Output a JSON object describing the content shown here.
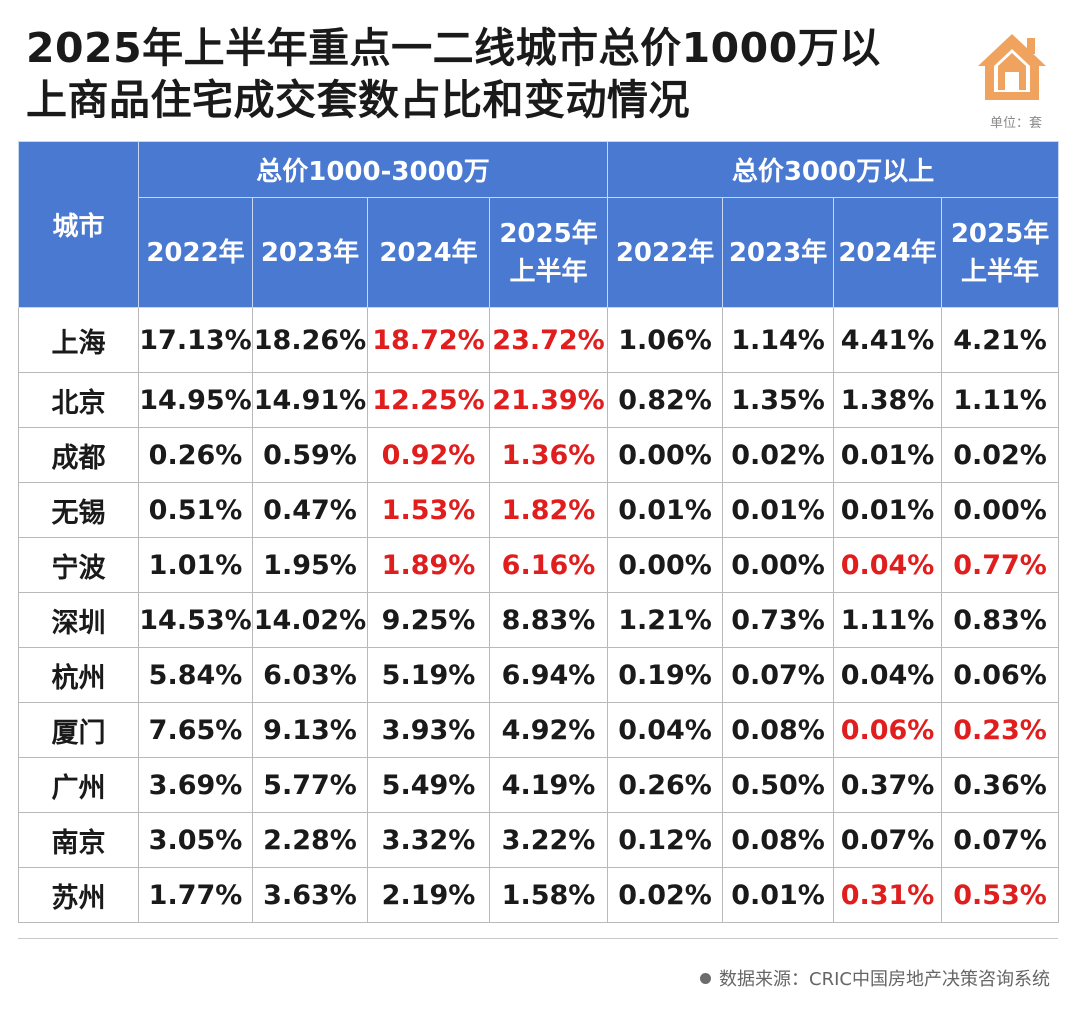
{
  "title": {
    "line1": "2025年上半年重点一二线城市总价1000万以",
    "line2": "上商品住宅成交套数占比和变动情况"
  },
  "unit_label": "单位：套",
  "logo_icon": "house-icon",
  "colors": {
    "header_bg": "#4a79d1",
    "highlight": "#e01e1e",
    "logo": "#f0a35e"
  },
  "table": {
    "city_header": "城市",
    "groups": [
      "总价1000-3000万",
      "总价3000万以上"
    ],
    "years": [
      {
        "line1": "2022年",
        "line2": ""
      },
      {
        "line1": "2023年",
        "line2": ""
      },
      {
        "line1": "2024年",
        "line2": ""
      },
      {
        "line1": "2025年",
        "line2": "上半年"
      },
      {
        "line1": "2022年",
        "line2": ""
      },
      {
        "line1": "2023年",
        "line2": ""
      },
      {
        "line1": "2024年",
        "line2": ""
      },
      {
        "line1": "2025年",
        "line2": "上半年"
      }
    ],
    "rows": [
      {
        "city": "上海",
        "values": [
          "17.13%",
          "18.26%",
          "18.72%",
          "23.72%",
          "1.06%",
          "1.14%",
          "4.41%",
          "4.21%"
        ],
        "highlight": [
          2,
          3
        ]
      },
      {
        "city": "北京",
        "values": [
          "14.95%",
          "14.91%",
          "12.25%",
          "21.39%",
          "0.82%",
          "1.35%",
          "1.38%",
          "1.11%"
        ],
        "highlight": [
          2,
          3
        ]
      },
      {
        "city": "成都",
        "values": [
          "0.26%",
          "0.59%",
          "0.92%",
          "1.36%",
          "0.00%",
          "0.02%",
          "0.01%",
          "0.02%"
        ],
        "highlight": [
          2,
          3
        ]
      },
      {
        "city": "无锡",
        "values": [
          "0.51%",
          "0.47%",
          "1.53%",
          "1.82%",
          "0.01%",
          "0.01%",
          "0.01%",
          "0.00%"
        ],
        "highlight": [
          2,
          3
        ]
      },
      {
        "city": "宁波",
        "values": [
          "1.01%",
          "1.95%",
          "1.89%",
          "6.16%",
          "0.00%",
          "0.00%",
          "0.04%",
          "0.77%"
        ],
        "highlight": [
          2,
          3,
          6,
          7
        ]
      },
      {
        "city": "深圳",
        "values": [
          "14.53%",
          "14.02%",
          "9.25%",
          "8.83%",
          "1.21%",
          "0.73%",
          "1.11%",
          "0.83%"
        ],
        "highlight": []
      },
      {
        "city": "杭州",
        "values": [
          "5.84%",
          "6.03%",
          "5.19%",
          "6.94%",
          "0.19%",
          "0.07%",
          "0.04%",
          "0.06%"
        ],
        "highlight": []
      },
      {
        "city": "厦门",
        "values": [
          "7.65%",
          "9.13%",
          "3.93%",
          "4.92%",
          "0.04%",
          "0.08%",
          "0.06%",
          "0.23%"
        ],
        "highlight": [
          6,
          7
        ]
      },
      {
        "city": "广州",
        "values": [
          "3.69%",
          "5.77%",
          "5.49%",
          "4.19%",
          "0.26%",
          "0.50%",
          "0.37%",
          "0.36%"
        ],
        "highlight": []
      },
      {
        "city": "南京",
        "values": [
          "3.05%",
          "2.28%",
          "3.32%",
          "3.22%",
          "0.12%",
          "0.08%",
          "0.07%",
          "0.07%"
        ],
        "highlight": []
      },
      {
        "city": "苏州",
        "values": [
          "1.77%",
          "3.63%",
          "2.19%",
          "1.58%",
          "0.02%",
          "0.01%",
          "0.31%",
          "0.53%"
        ],
        "highlight": [
          6,
          7
        ]
      }
    ]
  },
  "source": "数据来源：CRIC中国房地产决策咨询系统"
}
